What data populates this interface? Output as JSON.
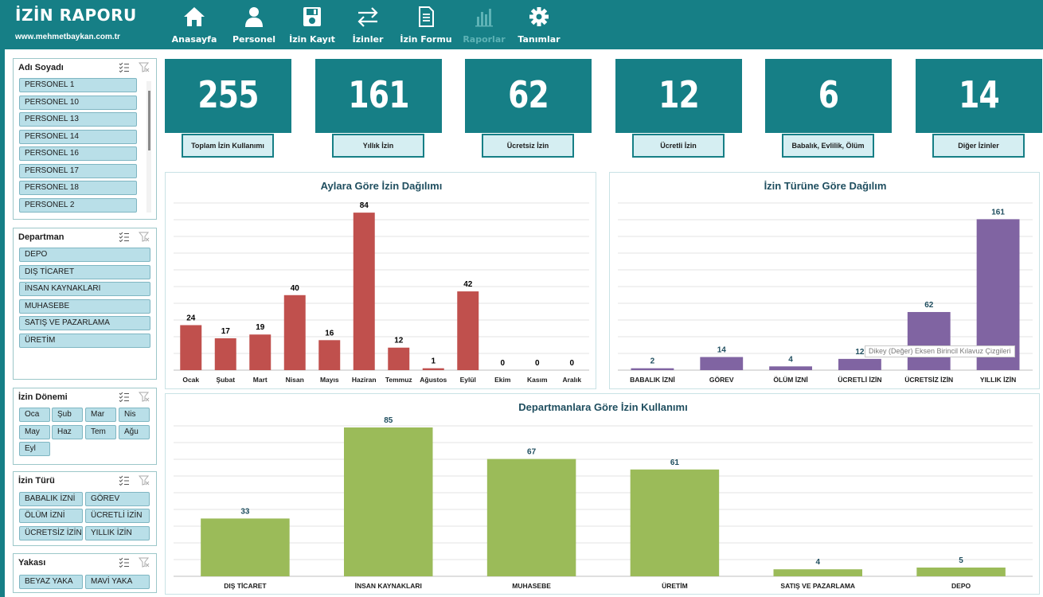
{
  "app": {
    "title": "İZİN RAPORU",
    "url": "www.mehmetbaykan.com.tr"
  },
  "nav": [
    {
      "label": "Anasayfa",
      "icon": "home-icon"
    },
    {
      "label": "Personel",
      "icon": "user-icon"
    },
    {
      "label": "İzin Kayıt",
      "icon": "save-icon"
    },
    {
      "label": "İzinler",
      "icon": "swap-arrows-icon"
    },
    {
      "label": "İzin Formu",
      "icon": "document-icon"
    },
    {
      "label": "Raporlar",
      "icon": "bar-chart-icon",
      "active": true
    },
    {
      "label": "Tanımlar",
      "icon": "gear-icon"
    }
  ],
  "slicers": {
    "personel": {
      "title": "Adı Soyadı",
      "items": [
        "PERSONEL 1",
        "PERSONEL 10",
        "PERSONEL 13",
        "PERSONEL 14",
        "PERSONEL 16",
        "PERSONEL 17",
        "PERSONEL 18",
        "PERSONEL 2"
      ]
    },
    "departman": {
      "title": "Departman",
      "items": [
        "DEPO",
        "DIŞ TİCARET",
        "İNSAN KAYNAKLARI",
        "MUHASEBE",
        "SATIŞ VE PAZARLAMA",
        "ÜRETİM"
      ]
    },
    "donem": {
      "title": "İzin Dönemi",
      "items": [
        "Oca",
        "Şub",
        "Mar",
        "Nis",
        "May",
        "Haz",
        "Tem",
        "Ağu",
        "Eyl"
      ]
    },
    "tur": {
      "title": "İzin Türü",
      "items": [
        "BABALIK İZNİ",
        "GÖREV",
        "ÖLÜM İZNİ",
        "ÜCRETLİ İZİN",
        "ÜCRETSİZ İZİN",
        "YILLIK İZİN"
      ]
    },
    "yaka": {
      "title": "Yakası",
      "items": [
        "BEYAZ YAKA",
        "MAVİ YAKA"
      ]
    }
  },
  "kpis": [
    {
      "value": "255",
      "label": "Toplam İzin Kullanımı"
    },
    {
      "value": "161",
      "label": "Yıllık İzin"
    },
    {
      "value": "62",
      "label": "Ücretsiz İzin"
    },
    {
      "value": "12",
      "label": "Ücretli İzin"
    },
    {
      "value": "6",
      "label": "Babalık, Evlilik, Ölüm"
    },
    {
      "value": "14",
      "label": "Diğer İzinler"
    }
  ],
  "tooltip": "Dikey (Değer) Eksen Birincil Kılavuz Çizgileri",
  "colors": {
    "brand": "#167f86",
    "monthly_bars": "#c0504d",
    "type_bars": "#8064a2",
    "dept_bars": "#9bbb59"
  },
  "chart_data": [
    {
      "type": "bar",
      "title": "Aylara Göre İzin Dağılımı",
      "categories": [
        "Ocak",
        "Şubat",
        "Mart",
        "Nisan",
        "Mayıs",
        "Haziran",
        "Temmuz",
        "Ağustos",
        "Eylül",
        "Ekim",
        "Kasım",
        "Aralık"
      ],
      "values": [
        24,
        17,
        19,
        40,
        16,
        84,
        12,
        1,
        42,
        0,
        0,
        0
      ],
      "ylim": [
        0,
        90
      ],
      "grid": true,
      "color": "#c0504d"
    },
    {
      "type": "bar",
      "title": "İzin Türüne Göre Dağılım",
      "categories": [
        "BABALIK İZNİ",
        "GÖREV",
        "ÖLÜM İZNİ",
        "ÜCRETLİ İZİN",
        "ÜCRETSİZ İZİN",
        "YILLIK İZİN"
      ],
      "values": [
        2,
        14,
        4,
        12,
        62,
        161
      ],
      "ylim": [
        0,
        180
      ],
      "grid": true,
      "color": "#8064a2"
    },
    {
      "type": "bar",
      "title": "Departmanlara Göre İzin Kullanımı",
      "categories": [
        "DIŞ TİCARET",
        "İNSAN KAYNAKLARI",
        "MUHASEBE",
        "ÜRETİM",
        "SATIŞ VE PAZARLAMA",
        "DEPO"
      ],
      "values": [
        33,
        85,
        67,
        61,
        4,
        5
      ],
      "ylim": [
        0,
        90
      ],
      "grid": true,
      "color": "#9bbb59"
    }
  ]
}
